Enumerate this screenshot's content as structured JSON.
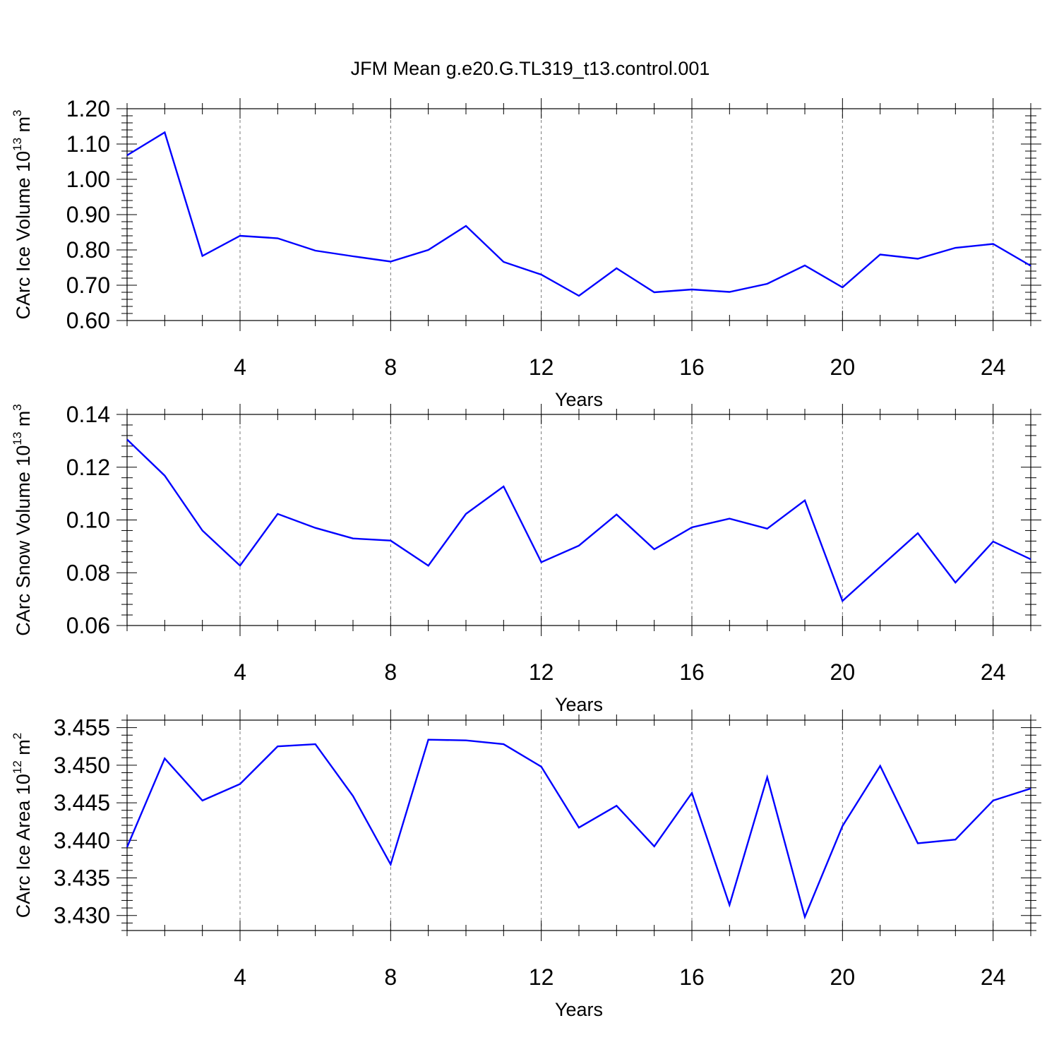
{
  "figure": {
    "title": "JFM Mean g.e20.G.TL319_t13.control.001",
    "line_color": "#0000ff"
  },
  "chart_data": [
    {
      "type": "line",
      "title": "JFM Mean g.e20.G.TL319_t13.control.001",
      "xlabel": "Years",
      "ylabel": "CArc Ice Volume 10",
      "ylabel_exponent": "13",
      "ylabel_unit": " m",
      "ylabel_unit_exponent": "3",
      "xlim": [
        1,
        25
      ],
      "ylim": [
        0.6,
        1.2
      ],
      "x_major_ticks": [
        4,
        8,
        12,
        16,
        20,
        24
      ],
      "y_major_ticks": [
        0.6,
        0.7,
        0.8,
        0.9,
        1.0,
        1.1,
        1.2
      ],
      "y_tick_labels": [
        "0.60",
        "0.70",
        "0.80",
        "0.90",
        "1.00",
        "1.10",
        "1.20"
      ],
      "x_tick_labels": [
        "4",
        "8",
        "12",
        "16",
        "20",
        "24"
      ],
      "grid": "vertical dashed at major x ticks",
      "x": [
        1,
        2,
        3,
        4,
        5,
        6,
        7,
        8,
        9,
        10,
        11,
        12,
        13,
        14,
        15,
        16,
        17,
        18,
        19,
        20,
        21,
        22,
        23,
        24,
        25
      ],
      "values": [
        1.068,
        1.133,
        0.783,
        0.84,
        0.833,
        0.798,
        0.782,
        0.767,
        0.8,
        0.868,
        0.766,
        0.73,
        0.67,
        0.748,
        0.68,
        0.688,
        0.681,
        0.704,
        0.756,
        0.694,
        0.787,
        0.775,
        0.806,
        0.817,
        0.755
      ]
    },
    {
      "type": "line",
      "xlabel": "Years",
      "ylabel": "CArc Snow Volume 10",
      "ylabel_exponent": "13",
      "ylabel_unit": " m",
      "ylabel_unit_exponent": "3",
      "xlim": [
        1,
        25
      ],
      "ylim": [
        0.06,
        0.14
      ],
      "x_major_ticks": [
        4,
        8,
        12,
        16,
        20,
        24
      ],
      "y_major_ticks": [
        0.06,
        0.08,
        0.1,
        0.12,
        0.14
      ],
      "y_tick_labels": [
        "0.06",
        "0.08",
        "0.10",
        "0.12",
        "0.14"
      ],
      "x_tick_labels": [
        "4",
        "8",
        "12",
        "16",
        "20",
        "24"
      ],
      "grid": "vertical dashed at major x ticks",
      "x": [
        1,
        2,
        3,
        4,
        5,
        6,
        7,
        8,
        9,
        10,
        11,
        12,
        13,
        14,
        15,
        16,
        17,
        18,
        19,
        20,
        21,
        22,
        23,
        24,
        25
      ],
      "values": [
        0.1305,
        0.1168,
        0.096,
        0.0827,
        0.1023,
        0.097,
        0.093,
        0.0922,
        0.0827,
        0.1023,
        0.1127,
        0.084,
        0.0903,
        0.1021,
        0.0889,
        0.0972,
        0.1005,
        0.0967,
        0.1074,
        0.0693,
        0.0822,
        0.095,
        0.0763,
        0.0918,
        0.0851
      ]
    },
    {
      "type": "line",
      "xlabel": "Years",
      "ylabel": "CArc Ice Area 10",
      "ylabel_exponent": "12",
      "ylabel_unit": " m",
      "ylabel_unit_exponent": "2",
      "xlim": [
        1,
        25
      ],
      "ylim": [
        3.428,
        3.456
      ],
      "x_major_ticks": [
        4,
        8,
        12,
        16,
        20,
        24
      ],
      "y_major_ticks": [
        3.43,
        3.435,
        3.44,
        3.445,
        3.45,
        3.455
      ],
      "y_tick_labels": [
        "3.430",
        "3.435",
        "3.440",
        "3.445",
        "3.450",
        "3.455"
      ],
      "x_tick_labels": [
        "4",
        "8",
        "12",
        "16",
        "20",
        "24"
      ],
      "grid": "vertical dashed at major x ticks",
      "x": [
        1,
        2,
        3,
        4,
        5,
        6,
        7,
        8,
        9,
        10,
        11,
        12,
        13,
        14,
        15,
        16,
        17,
        18,
        19,
        20,
        21,
        22,
        23,
        24,
        25
      ],
      "values": [
        3.4391,
        3.4509,
        3.4453,
        3.4475,
        3.4525,
        3.4528,
        3.4459,
        3.4368,
        3.4534,
        3.4533,
        3.4528,
        3.4498,
        3.4417,
        3.4446,
        3.4392,
        3.4463,
        3.4314,
        3.4484,
        3.4298,
        3.4419,
        3.4499,
        3.4396,
        3.4401,
        3.4453,
        3.4469
      ]
    }
  ]
}
